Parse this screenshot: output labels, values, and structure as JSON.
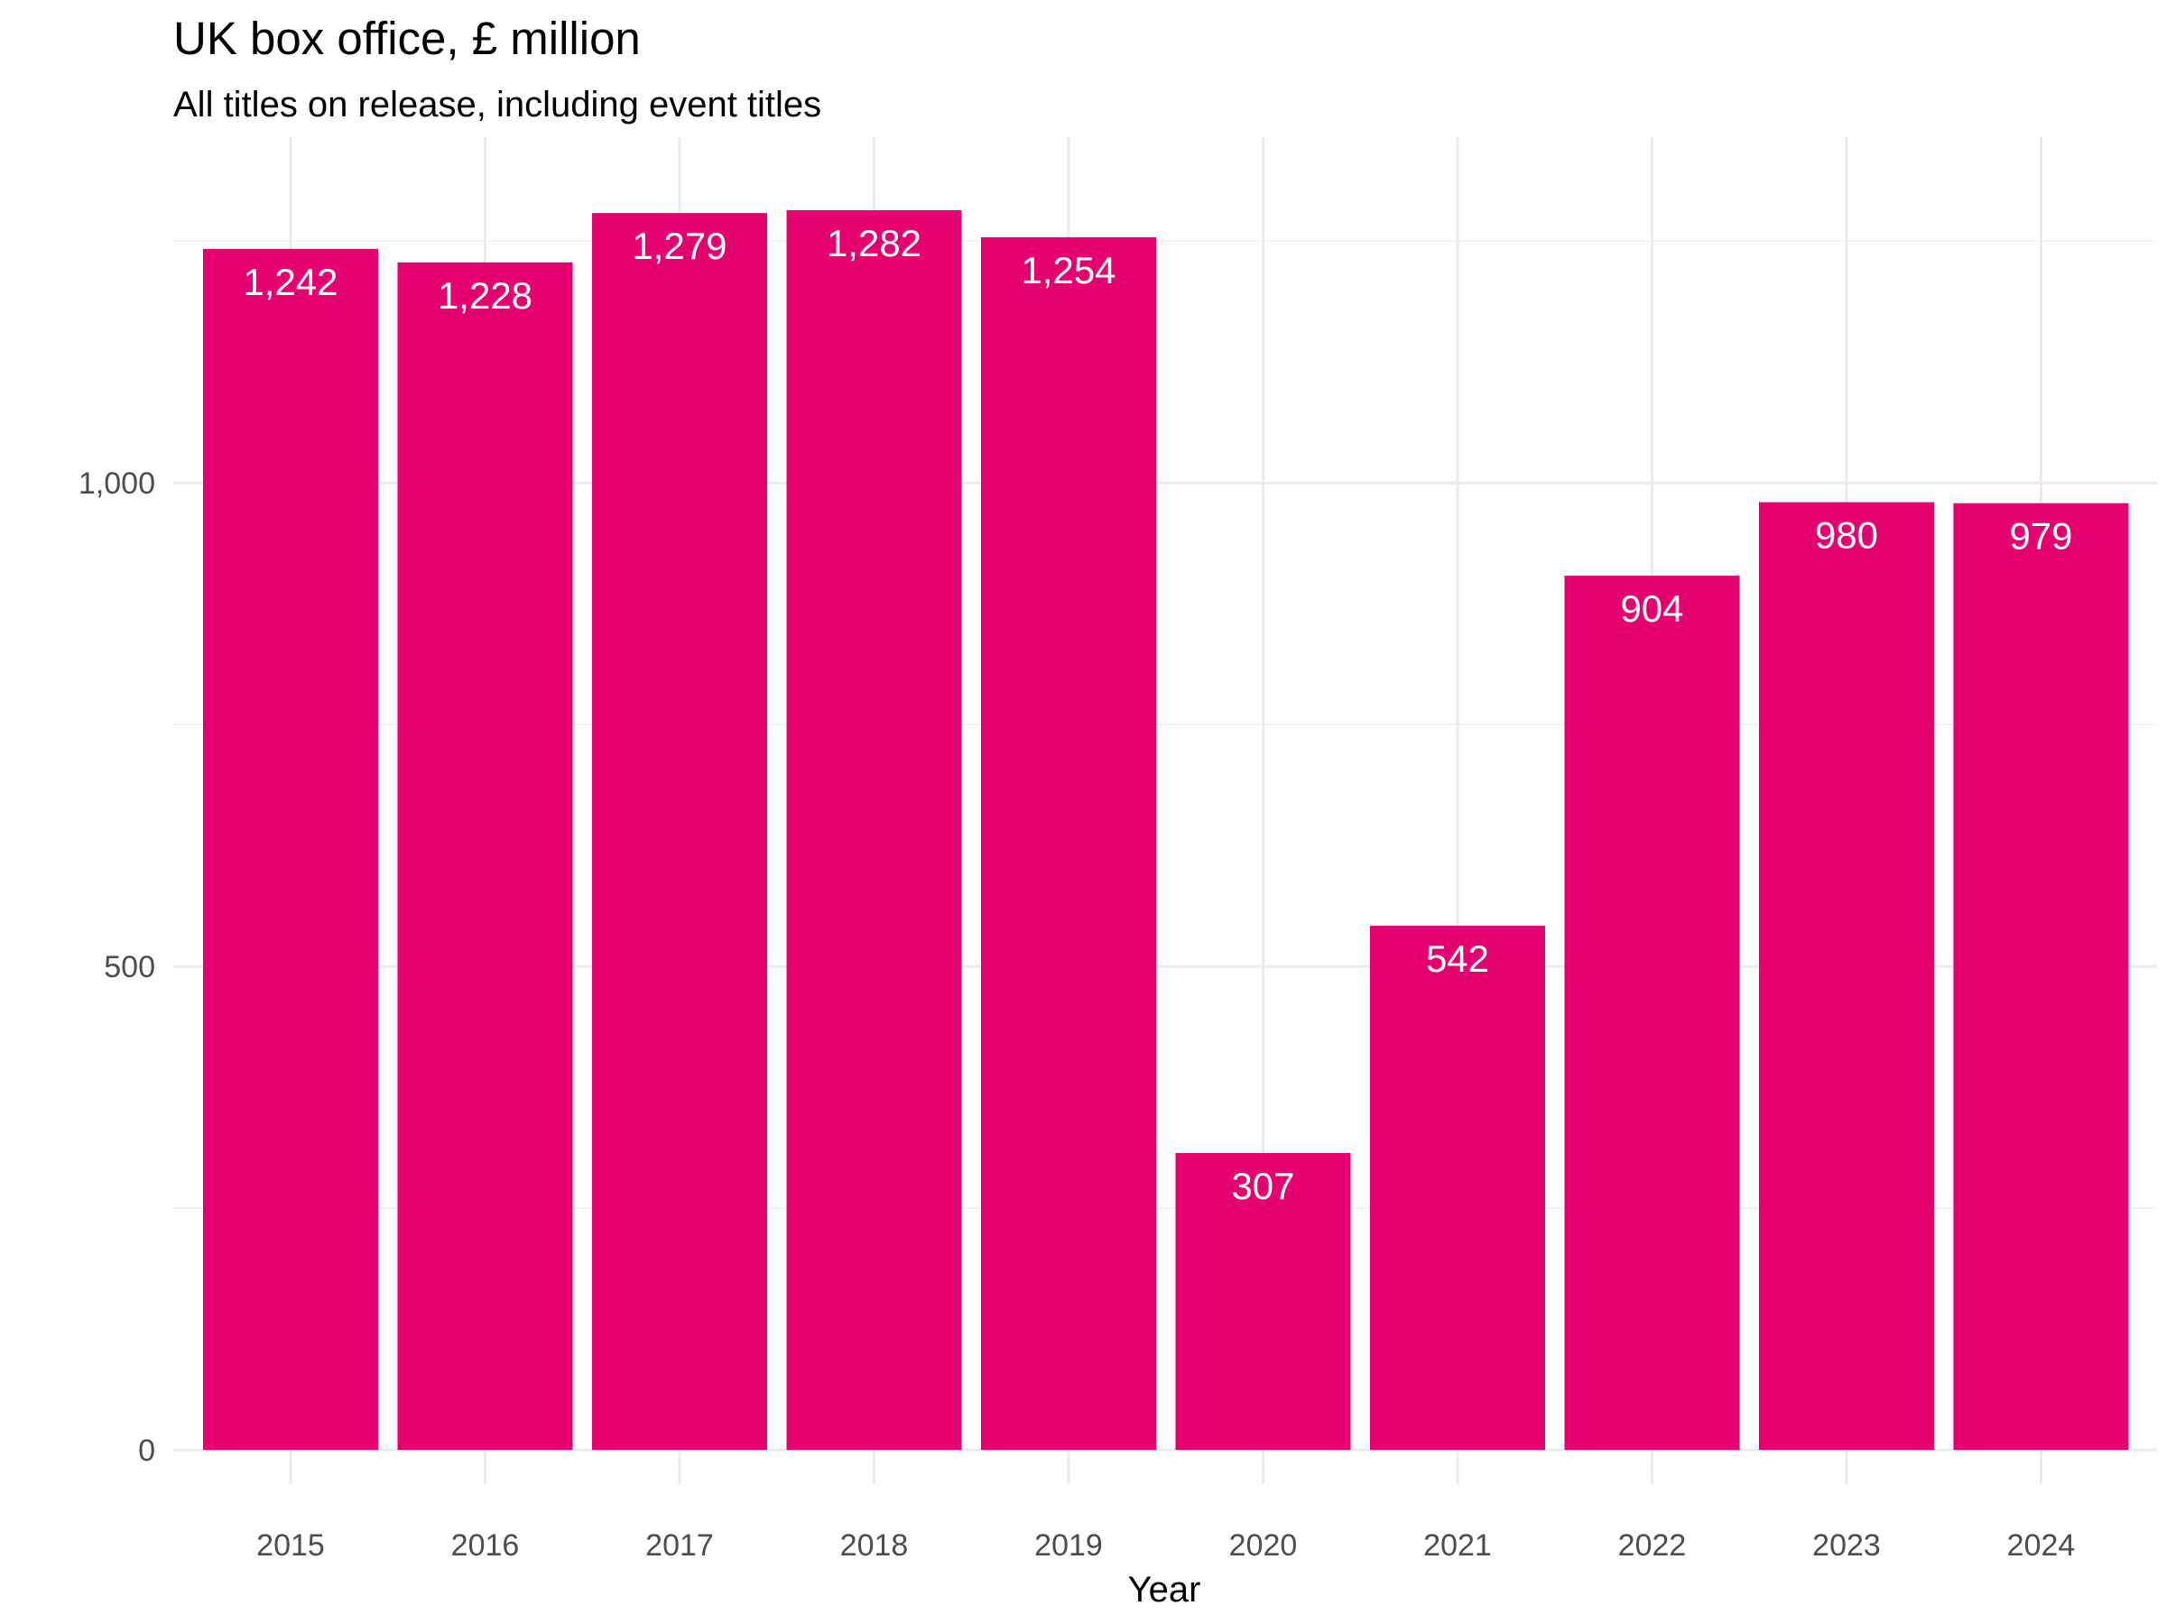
{
  "chart_data": {
    "type": "bar",
    "title": "UK box office, £ million",
    "subtitle": "All titles on release, including event titles",
    "xlabel": "Year",
    "ylabel": "",
    "categories": [
      "2015",
      "2016",
      "2017",
      "2018",
      "2019",
      "2020",
      "2021",
      "2022",
      "2023",
      "2024"
    ],
    "values": [
      1242,
      1228,
      1279,
      1282,
      1254,
      307,
      542,
      904,
      980,
      979
    ],
    "value_labels": [
      "1,242",
      "1,228",
      "1,279",
      "1,282",
      "1,254",
      "307",
      "542",
      "904",
      "980",
      "979"
    ],
    "ylim": [
      0,
      1350
    ],
    "yticks": [
      0,
      500,
      1000
    ],
    "ytick_labels": [
      "0",
      "500",
      "1,000"
    ],
    "grid": true,
    "legend": "none",
    "bar_color": "#E5006F"
  }
}
